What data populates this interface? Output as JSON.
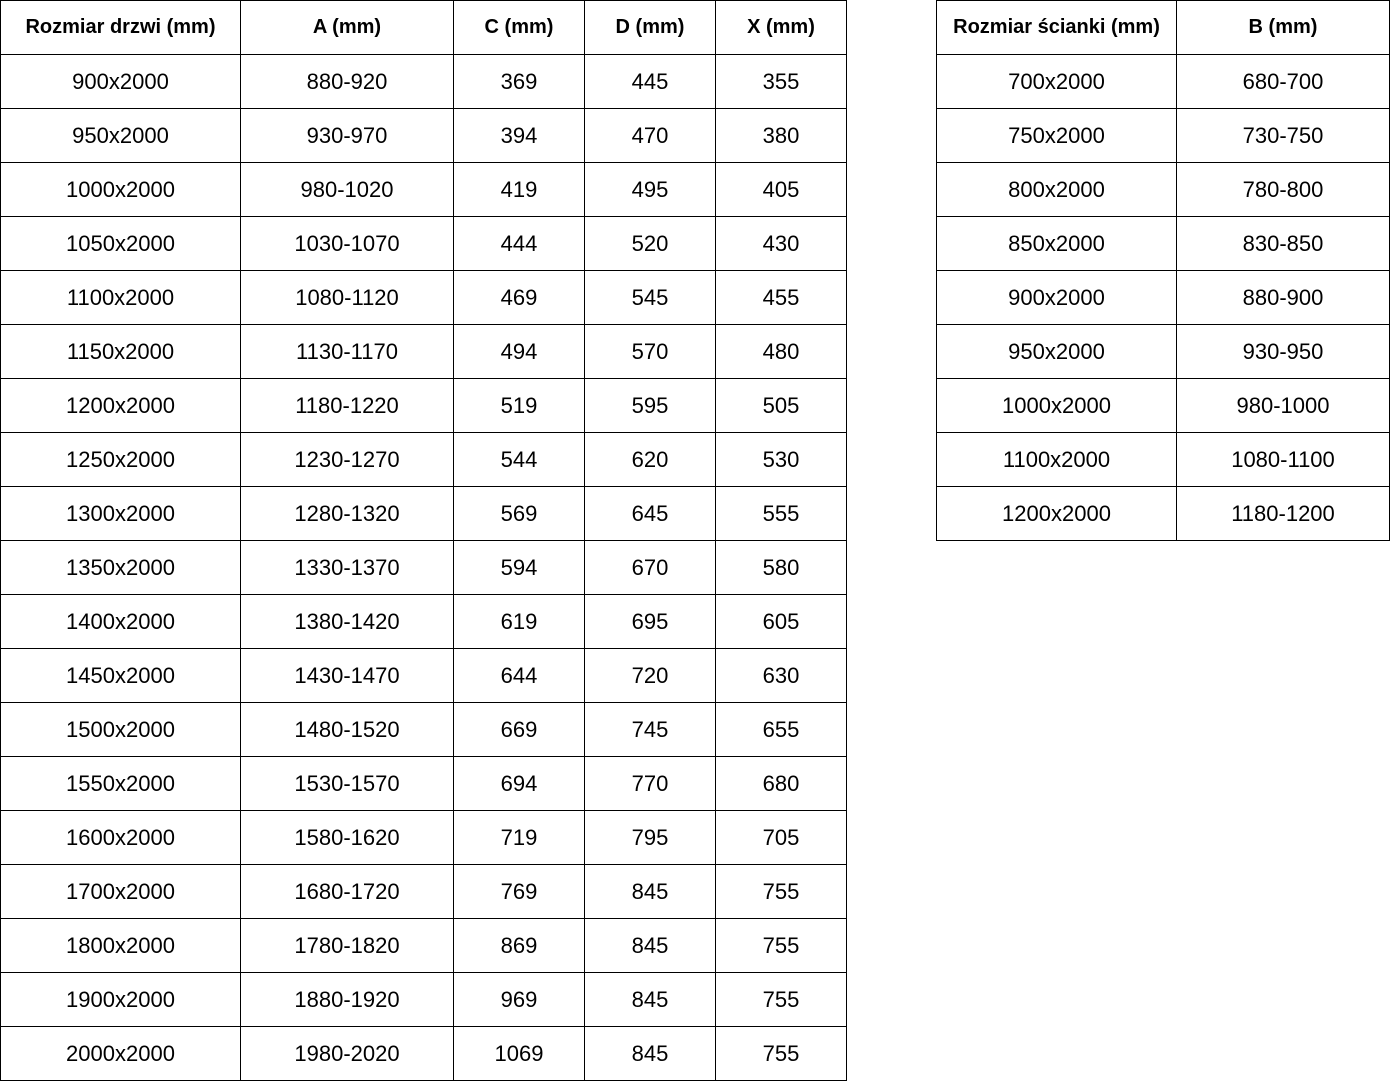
{
  "door_table": {
    "headers": [
      "Rozmiar drzwi (mm)",
      "A (mm)",
      "C (mm)",
      "D (mm)",
      "X (mm)"
    ],
    "rows": [
      [
        "900x2000",
        "880-920",
        "369",
        "445",
        "355"
      ],
      [
        "950x2000",
        "930-970",
        "394",
        "470",
        "380"
      ],
      [
        "1000x2000",
        "980-1020",
        "419",
        "495",
        "405"
      ],
      [
        "1050x2000",
        "1030-1070",
        "444",
        "520",
        "430"
      ],
      [
        "1100x2000",
        "1080-1120",
        "469",
        "545",
        "455"
      ],
      [
        "1150x2000",
        "1130-1170",
        "494",
        "570",
        "480"
      ],
      [
        "1200x2000",
        "1180-1220",
        "519",
        "595",
        "505"
      ],
      [
        "1250x2000",
        "1230-1270",
        "544",
        "620",
        "530"
      ],
      [
        "1300x2000",
        "1280-1320",
        "569",
        "645",
        "555"
      ],
      [
        "1350x2000",
        "1330-1370",
        "594",
        "670",
        "580"
      ],
      [
        "1400x2000",
        "1380-1420",
        "619",
        "695",
        "605"
      ],
      [
        "1450x2000",
        "1430-1470",
        "644",
        "720",
        "630"
      ],
      [
        "1500x2000",
        "1480-1520",
        "669",
        "745",
        "655"
      ],
      [
        "1550x2000",
        "1530-1570",
        "694",
        "770",
        "680"
      ],
      [
        "1600x2000",
        "1580-1620",
        "719",
        "795",
        "705"
      ],
      [
        "1700x2000",
        "1680-1720",
        "769",
        "845",
        "755"
      ],
      [
        "1800x2000",
        "1780-1820",
        "869",
        "845",
        "755"
      ],
      [
        "1900x2000",
        "1880-1920",
        "969",
        "845",
        "755"
      ],
      [
        "2000x2000",
        "1980-2020",
        "1069",
        "845",
        "755"
      ]
    ]
  },
  "wall_table": {
    "headers": [
      "Rozmiar ścianki (mm)",
      "B (mm)"
    ],
    "rows": [
      [
        "700x2000",
        "680-700"
      ],
      [
        "750x2000",
        "730-750"
      ],
      [
        "800x2000",
        "780-800"
      ],
      [
        "850x2000",
        "830-850"
      ],
      [
        "900x2000",
        "880-900"
      ],
      [
        "950x2000",
        "930-950"
      ],
      [
        "1000x2000",
        "980-1000"
      ],
      [
        "1100x2000",
        "1080-1100"
      ],
      [
        "1200x2000",
        "1180-1200"
      ]
    ]
  }
}
